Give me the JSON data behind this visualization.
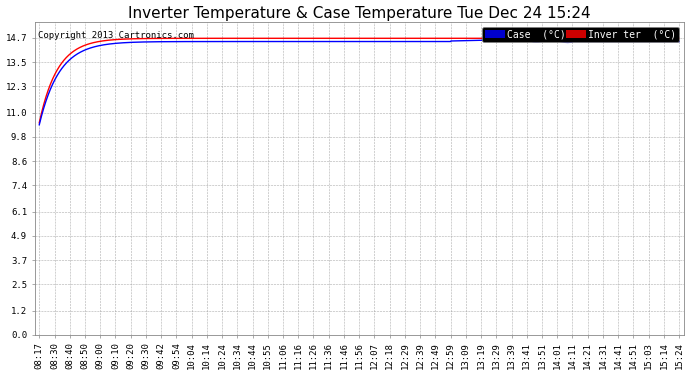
{
  "title": "Inverter Temperature & Case Temperature Tue Dec 24 15:24",
  "copyright": "Copyright 2013 Cartronics.com",
  "background_color": "#ffffff",
  "plot_bg_color": "#ffffff",
  "grid_color": "#999999",
  "yticks": [
    0.0,
    1.2,
    2.5,
    3.7,
    4.9,
    6.1,
    7.4,
    8.6,
    9.8,
    11.0,
    12.3,
    13.5,
    14.7
  ],
  "ylim": [
    0.0,
    15.5
  ],
  "xtick_labels": [
    "08:17",
    "08:30",
    "08:40",
    "08:50",
    "09:00",
    "09:10",
    "09:20",
    "09:30",
    "09:42",
    "09:54",
    "10:04",
    "10:14",
    "10:24",
    "10:34",
    "10:44",
    "10:55",
    "11:06",
    "11:16",
    "11:26",
    "11:36",
    "11:46",
    "11:56",
    "12:07",
    "12:18",
    "12:29",
    "12:39",
    "12:49",
    "12:59",
    "13:09",
    "13:19",
    "13:29",
    "13:39",
    "13:41",
    "13:51",
    "14:01",
    "14:11",
    "14:21",
    "14:31",
    "14:41",
    "14:51",
    "15:03",
    "15:14",
    "15:24"
  ],
  "legend_case_label": "Case  (°C)",
  "legend_inverter_label": "Inver ter  (°C)",
  "case_color": "#0000ff",
  "inverter_color": "#ff0000",
  "case_legend_bg": "#0000cc",
  "inverter_legend_bg": "#cc0000",
  "title_fontsize": 11,
  "axis_fontsize": 6.5,
  "copyright_fontsize": 6.5,
  "legend_fontsize": 7
}
